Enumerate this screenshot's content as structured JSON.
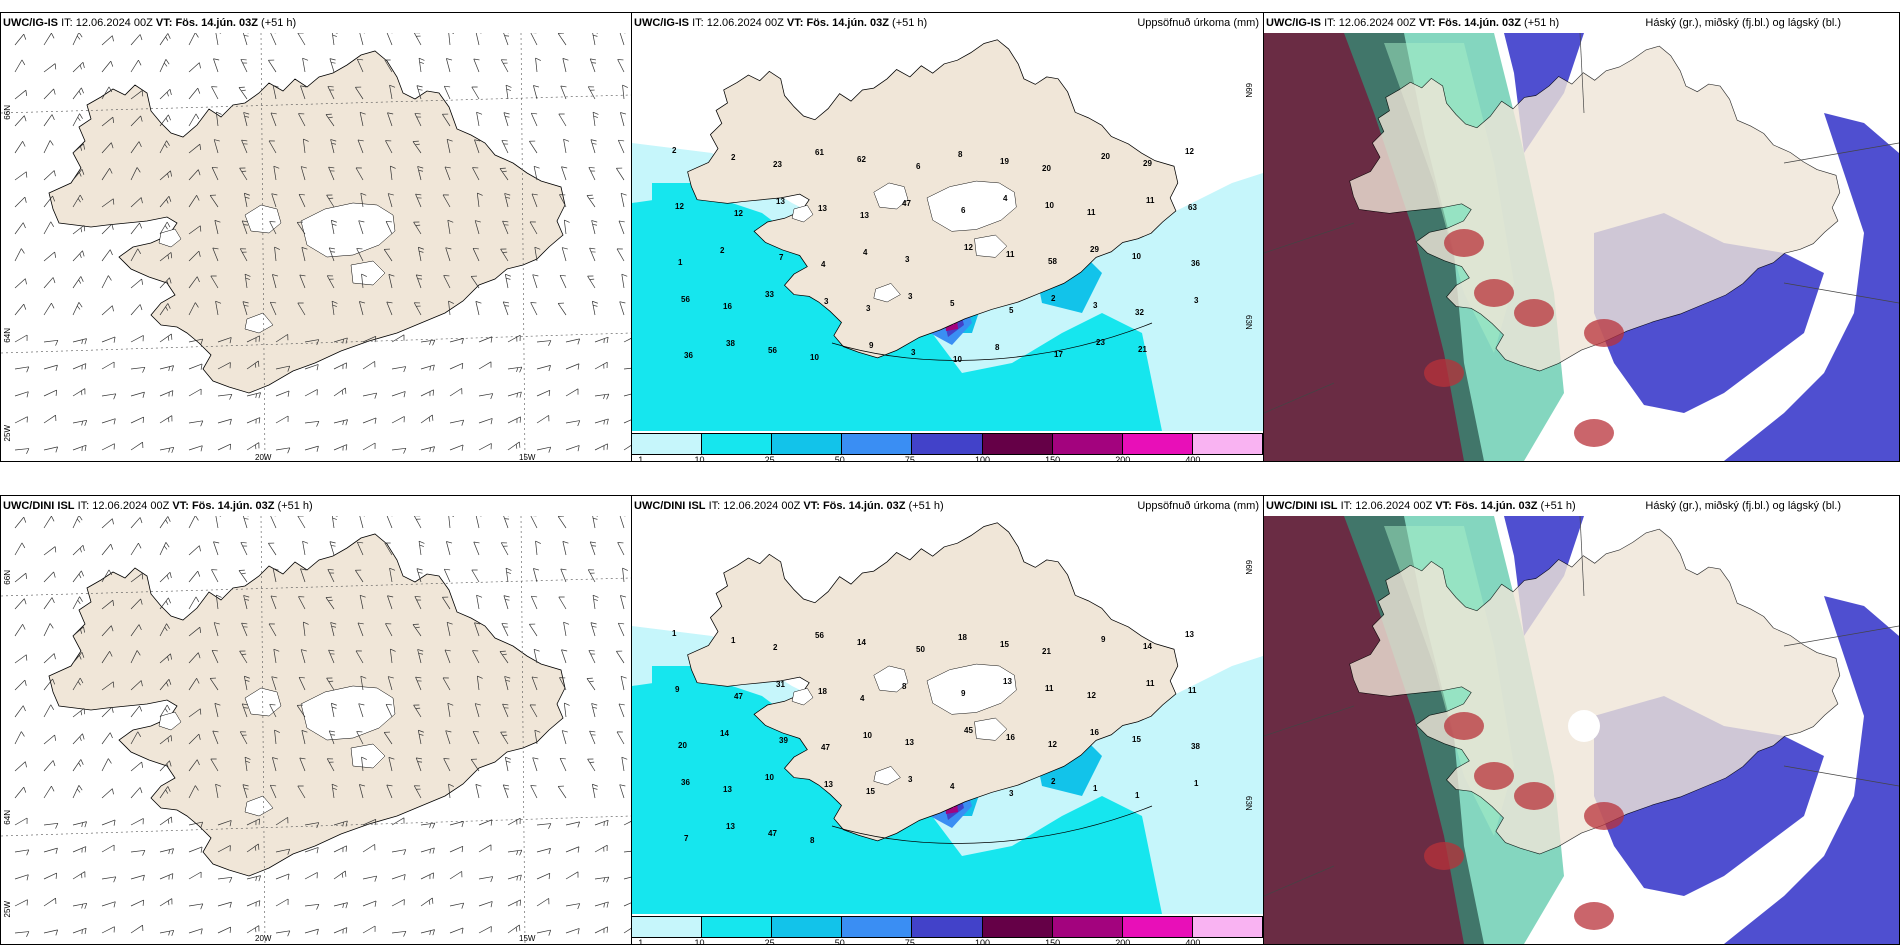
{
  "rows": [
    {
      "model": "UWC/IG-IS",
      "it_label": "IT:",
      "it": "12.06.2024 00Z",
      "vt_label": "VT:",
      "vt": "Fös. 14.jún. 03Z",
      "offset": "(+51 h)"
    },
    {
      "model": "UWC/DINI ISL",
      "it_label": "IT:",
      "it": "12.06.2024 00Z",
      "vt_label": "VT:",
      "vt": "Fös. 14.jún. 03Z",
      "offset": "(+51 h)"
    }
  ],
  "precip_title": "Uppsöfnuð úrkoma (mm)",
  "cloud_title": "Háský (gr.), miðský (fj.bl.) og lágský (bl.)",
  "axis_labels": {
    "lat66": "66N",
    "lat64": "64N",
    "lat63": "63N",
    "lon20": "20W",
    "lon15": "15W",
    "lon25": "25W"
  },
  "legend": {
    "ticks": [
      "1",
      "10",
      "25",
      "50",
      "75",
      "100",
      "150",
      "200",
      "400"
    ],
    "colors": [
      "#c6f6fb",
      "#16e6ee",
      "#12c3ea",
      "#3a8ef3",
      "#4242c9",
      "#650047",
      "#a3037e",
      "#e80fb8",
      "#f9b3f2"
    ]
  },
  "colors": {
    "land": "#f0e6d8",
    "sea_white": "#ffffff",
    "high_cloud": "#5a1530",
    "mid_cloud": "#1fb58a",
    "low_cloud": "#4f4fd0"
  },
  "precip_labels_top": [
    "2",
    "2",
    "23",
    "61",
    "62",
    "6",
    "8",
    "19",
    "20",
    "20",
    "29",
    "12",
    "12",
    "12",
    "13",
    "13",
    "13",
    "47",
    "6",
    "4",
    "10",
    "11",
    "11",
    "63",
    "1",
    "2",
    "7",
    "4",
    "4",
    "3",
    "12",
    "11",
    "58",
    "29",
    "10",
    "36",
    "56",
    "16",
    "33",
    "3",
    "3",
    "3",
    "5",
    "5",
    "2",
    "3",
    "32",
    "3",
    "36",
    "38",
    "56",
    "10",
    "9",
    "3",
    "10",
    "8",
    "17",
    "23",
    "21"
  ],
  "precip_labels_bottom": [
    "1",
    "1",
    "2",
    "56",
    "14",
    "50",
    "18",
    "15",
    "21",
    "9",
    "14",
    "13",
    "9",
    "47",
    "31",
    "18",
    "4",
    "8",
    "9",
    "13",
    "11",
    "12",
    "11",
    "11",
    "20",
    "14",
    "39",
    "47",
    "10",
    "13",
    "45",
    "16",
    "12",
    "16",
    "15",
    "38",
    "36",
    "13",
    "10",
    "13",
    "15",
    "3",
    "4",
    "3",
    "2",
    "1",
    "1",
    "1",
    "7",
    "13",
    "47",
    "8"
  ]
}
